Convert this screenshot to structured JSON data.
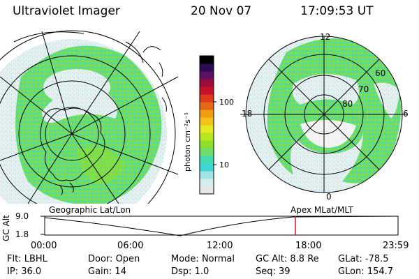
{
  "header": {
    "instrument": "Ultraviolet Imager",
    "date": "20 Nov 07",
    "time": "17:09:53 UT"
  },
  "colorbar": {
    "unit_label": "photon cm⁻²s⁻¹",
    "tick_labels": [
      "100",
      "10"
    ],
    "colors": [
      "#e6e6e6",
      "#d7ecec",
      "#9fe3e3",
      "#3fd6d6",
      "#46d9b0",
      "#6fdc6a",
      "#8fe02a",
      "#b7e61c",
      "#e5e81e",
      "#f5c21a",
      "#f29a10",
      "#e8661a",
      "#de3a1c",
      "#c8102a",
      "#9b0a3a",
      "#5e1064",
      "#2d0a55",
      "#000000"
    ]
  },
  "left_panel": {
    "projection_label": "Geographic Lat/Lon"
  },
  "right_panel": {
    "projection_label": "Apex  MLat/MLT",
    "mlt_labels": {
      "top": "12",
      "left": "18",
      "right": "6",
      "bottom": "0"
    },
    "lat_labels": [
      "60",
      "70",
      "80"
    ]
  },
  "timeline": {
    "y_axis_label": "GC Alt",
    "y_ticks": [
      "9.0",
      "1.8"
    ],
    "x_ticks": [
      "00:00",
      "06:00",
      "12:00",
      "18:00",
      "23:59"
    ],
    "current_time_marker": "17:09:53",
    "marker_color": "#d11a1a"
  },
  "status": {
    "row1": [
      {
        "label": "Flt:",
        "value": "LBHL"
      },
      {
        "label": "Door:",
        "value": "Open"
      },
      {
        "label": "Mode:",
        "value": "Normal"
      },
      {
        "label": "GC Alt:",
        "value": "8.8 Re"
      },
      {
        "label": "GLat:",
        "value": "-78.5"
      }
    ],
    "row2": [
      {
        "label": "IP:",
        "value": "36.0"
      },
      {
        "label": "Gain:",
        "value": "14"
      },
      {
        "label": "Dsp:",
        "value": "1.0"
      },
      {
        "label": "Seq:",
        "value": "39"
      },
      {
        "label": "GLon:",
        "value": "154.7"
      }
    ]
  }
}
